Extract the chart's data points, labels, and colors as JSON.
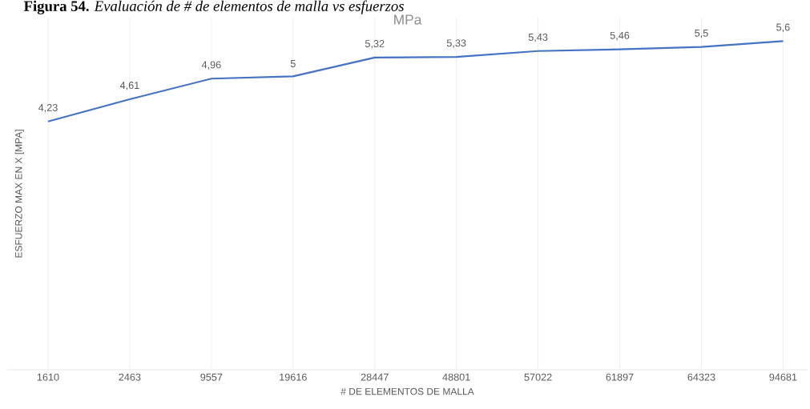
{
  "chart_data": {
    "type": "line",
    "title": "MPa",
    "xlabel": "# DE ELEMENTOS DE MALLA",
    "ylabel": "ESFUERZO MAX EN X  [MPA]",
    "annotations": [
      "**Figura 54.** *Evaluación de # de elementos de malla vs esfuerzos*"
    ],
    "categories": [
      "1610",
      "2463",
      "9557",
      "19616",
      "28447",
      "48801",
      "57022",
      "61897",
      "64323",
      "94681"
    ],
    "series": [
      {
        "color": "#4472c4",
        "values": [
          4.23,
          4.61,
          4.96,
          5,
          5.32,
          5.33,
          5.43,
          5.46,
          5.5,
          5.6
        ],
        "value_labels": [
          "4,23",
          "4,61",
          "4,96",
          "5",
          "5,32",
          "5,33",
          "5,43",
          "5,46",
          "5,5",
          "5,6"
        ]
      }
    ],
    "ylim": [
      0,
      6
    ],
    "grid": "x",
    "tick_labels": "x"
  }
}
